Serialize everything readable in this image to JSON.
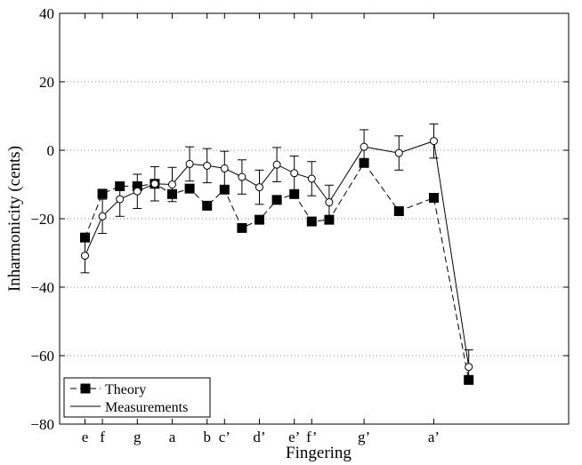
{
  "chart_data": {
    "type": "line",
    "title": "",
    "xlabel": "Fingering",
    "ylabel": "Inharmonicity (cents)",
    "ylim": [
      -80,
      40
    ],
    "yticks": [
      40,
      20,
      0,
      -20,
      -40,
      -60,
      -80
    ],
    "ytick_labels": [
      "40",
      "20",
      "0",
      "−20",
      "−40",
      "−60",
      "−80"
    ],
    "grid": "horizontal dotted",
    "legend_position": "bottom-left",
    "xtick_labels": [
      {
        "label": "e",
        "pos": 1
      },
      {
        "label": "f",
        "pos": 2
      },
      {
        "label": "g",
        "pos": 4
      },
      {
        "label": "a",
        "pos": 6
      },
      {
        "label": "b",
        "pos": 8
      },
      {
        "label": "c’",
        "pos": 9
      },
      {
        "label": "d’",
        "pos": 11
      },
      {
        "label": "e’",
        "pos": 13
      },
      {
        "label": "f’",
        "pos": 14
      },
      {
        "label": "g’",
        "pos": 17
      },
      {
        "label": "a’",
        "pos": 21
      }
    ],
    "series": [
      {
        "name": "Theory",
        "style": "dashed line with filled squares",
        "x": [
          1,
          2,
          3,
          4,
          5,
          6,
          7,
          8,
          9,
          10,
          11,
          12,
          13,
          14,
          15,
          17,
          19,
          21,
          23
        ],
        "values": [
          -25.5,
          -12.7,
          -10.5,
          -10.5,
          -9.8,
          -12.8,
          -11.2,
          -16.2,
          -11.5,
          -22.7,
          -20.3,
          -14.5,
          -12.8,
          -20.8,
          -20.3,
          -3.7,
          -17.8,
          -13.9,
          -67.1
        ]
      },
      {
        "name": "Measurements",
        "style": "solid line with open circles and error bars",
        "x": [
          1,
          2,
          3,
          4,
          5,
          6,
          7,
          8,
          9,
          10,
          11,
          12,
          13,
          14,
          15,
          17,
          19,
          21,
          23
        ],
        "values": [
          -30.8,
          -19.3,
          -14.3,
          -12.0,
          -9.8,
          -10.0,
          -4.0,
          -4.5,
          -5.3,
          -7.8,
          -10.8,
          -4.2,
          -6.7,
          -8.3,
          -15.2,
          1.0,
          -0.8,
          2.7,
          -63.3
        ],
        "errors": [
          5,
          5,
          5,
          5,
          5,
          5,
          5,
          5,
          5,
          5,
          5,
          5,
          5,
          5,
          5,
          5,
          5,
          5,
          5
        ]
      }
    ],
    "legend": [
      "Theory",
      "Measurements"
    ]
  }
}
